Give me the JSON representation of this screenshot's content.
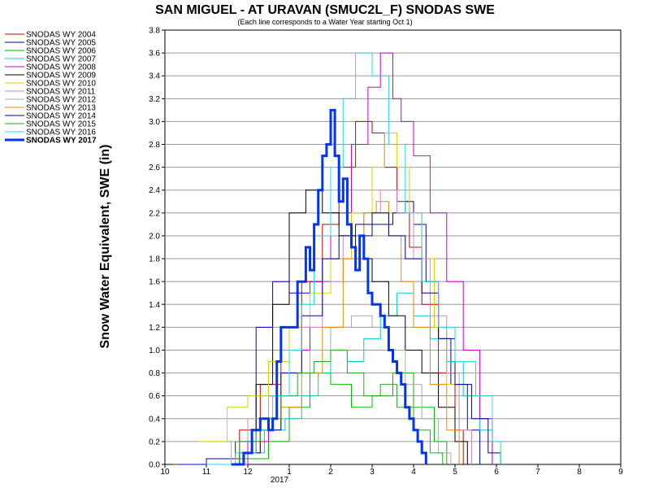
{
  "chart_data": {
    "type": "line",
    "title": "SAN MIGUEL - AT URAVAN (SMUC2L_F) SNODAS SWE",
    "subtitle": "(Each line corresponds to a Water Year starting Oct 1)",
    "xlabel": "",
    "ylabel": "Snow Water Equivalent, SWE (in)",
    "x_unit": "month (fractional, 10 = Oct 1; 2017 marks Jan)",
    "xlim": [
      10,
      21.0
    ],
    "ylim": [
      0,
      3.8
    ],
    "x_ticks": [
      {
        "v": 10,
        "label": "10"
      },
      {
        "v": 11,
        "label": "11"
      },
      {
        "v": 12,
        "label": "12"
      },
      {
        "v": 13,
        "label": "1"
      },
      {
        "v": 14,
        "label": "2"
      },
      {
        "v": 15,
        "label": "3"
      },
      {
        "v": 16,
        "label": "4"
      },
      {
        "v": 17,
        "label": "5"
      },
      {
        "v": 18,
        "label": "6"
      },
      {
        "v": 19,
        "label": "7"
      },
      {
        "v": 20,
        "label": "8"
      },
      {
        "v": 21,
        "label": "9"
      }
    ],
    "x_year_label": "2017",
    "y_ticks": [
      0.0,
      0.2,
      0.4,
      0.6,
      0.8,
      1.0,
      1.2,
      1.4,
      1.6,
      1.8,
      2.0,
      2.2,
      2.4,
      2.6,
      2.8,
      3.0,
      3.2,
      3.4,
      3.6,
      3.8
    ],
    "grid": "horizontal",
    "legend_position": "left",
    "series": [
      {
        "name": "SNODAS WY 2004",
        "color": "#cc0000",
        "width": 1,
        "x": [
          10.2,
          11.0,
          11.8,
          12.3,
          12.8,
          13.3,
          13.8,
          14.2,
          14.6,
          15.0,
          15.3,
          15.6,
          15.9,
          16.2,
          16.6,
          17.0,
          17.2
        ],
        "y": [
          0,
          0.05,
          0.3,
          0.7,
          1.2,
          1.6,
          2.1,
          2.6,
          3.0,
          2.9,
          2.6,
          2.3,
          1.9,
          1.4,
          0.8,
          0.3,
          0
        ]
      },
      {
        "name": "SNODAS WY 2005",
        "color": "#0000cc",
        "width": 1,
        "x": [
          10.3,
          11.0,
          11.7,
          12.2,
          12.6,
          13.0,
          13.5,
          14.0,
          14.5,
          15.0,
          15.5,
          15.8,
          16.0,
          16.3,
          16.6,
          16.9,
          17.3,
          17.6
        ],
        "y": [
          0,
          0.05,
          0.2,
          1.2,
          1.6,
          1.5,
          1.6,
          1.8,
          2.0,
          2.1,
          2.2,
          2.3,
          2.1,
          1.6,
          1.1,
          0.7,
          0.3,
          0
        ]
      },
      {
        "name": "SNODAS WY 2006",
        "color": "#00bb00",
        "width": 1,
        "x": [
          11.0,
          11.8,
          12.5,
          13.0,
          13.5,
          14.0,
          14.5,
          15.0,
          15.5,
          16.0,
          16.5,
          16.8
        ],
        "y": [
          0,
          0.05,
          0.2,
          0.5,
          0.8,
          0.7,
          0.5,
          0.6,
          0.8,
          0.5,
          0.2,
          0
        ]
      },
      {
        "name": "SNODAS WY 2007",
        "color": "#00cccc",
        "width": 1,
        "x": [
          11.0,
          11.8,
          12.4,
          12.9,
          13.3,
          13.7,
          14.0,
          14.4,
          14.8,
          15.2,
          15.6,
          16.0,
          16.4,
          16.8,
          17.2,
          17.6,
          17.9
        ],
        "y": [
          0,
          0.1,
          0.3,
          0.4,
          0.6,
          0.8,
          1.0,
          0.9,
          1.1,
          1.3,
          1.5,
          1.3,
          1.1,
          0.9,
          0.6,
          0.3,
          0
        ]
      },
      {
        "name": "SNODAS WY 2008",
        "color": "#cc00cc",
        "width": 1,
        "x": [
          11.2,
          12.0,
          12.5,
          13.0,
          13.5,
          14.0,
          14.5,
          14.9,
          15.2,
          15.5,
          15.7,
          16.0,
          16.4,
          16.8,
          17.2,
          17.6,
          17.9
        ],
        "y": [
          0,
          0.2,
          0.6,
          1.0,
          1.6,
          2.2,
          2.8,
          3.3,
          3.6,
          3.2,
          3.0,
          2.7,
          2.2,
          1.6,
          1.0,
          0.4,
          0
        ]
      },
      {
        "name": "SNODAS WY 2009",
        "color": "#000000",
        "width": 1,
        "x": [
          11.0,
          11.8,
          12.2,
          12.6,
          13.0,
          13.4,
          13.8,
          14.2,
          14.6,
          15.0,
          15.4,
          15.8,
          16.2,
          16.6,
          17.0,
          17.3
        ],
        "y": [
          0,
          0.1,
          0.7,
          1.4,
          2.2,
          2.4,
          2.2,
          2.0,
          1.8,
          1.6,
          1.3,
          1.0,
          0.8,
          0.5,
          0.2,
          0
        ]
      },
      {
        "name": "SNODAS WY 2010",
        "color": "#e0d000",
        "width": 1,
        "x": [
          10.8,
          11.5,
          12.0,
          12.5,
          13.0,
          13.5,
          14.0,
          14.5,
          15.0,
          15.3,
          15.6,
          15.9,
          16.2,
          16.5,
          16.8,
          17.1,
          17.4
        ],
        "y": [
          0.2,
          0.5,
          0.6,
          0.9,
          1.2,
          1.5,
          1.8,
          2.2,
          2.6,
          2.9,
          2.6,
          2.2,
          1.8,
          1.2,
          0.7,
          0.3,
          0
        ]
      },
      {
        "name": "SNODAS WY 2011",
        "color": "#cc88cc",
        "width": 1,
        "x": [
          11.0,
          11.8,
          12.3,
          12.8,
          13.3,
          13.8,
          14.3,
          14.8,
          15.2,
          15.6,
          16.0,
          16.4,
          16.8,
          17.1,
          17.4
        ],
        "y": [
          0,
          0.1,
          0.4,
          0.8,
          1.2,
          1.6,
          2.0,
          2.2,
          2.4,
          2.2,
          1.8,
          1.3,
          0.8,
          0.3,
          0
        ]
      },
      {
        "name": "SNODAS WY 2012",
        "color": "#aaaaaa",
        "width": 1,
        "x": [
          11.0,
          11.6,
          12.0,
          12.5,
          13.0,
          13.5,
          14.0,
          14.5,
          15.0,
          15.4,
          15.8,
          16.2,
          16.6,
          16.9
        ],
        "y": [
          0,
          0.2,
          0.4,
          0.6,
          0.8,
          1.0,
          1.2,
          1.3,
          1.2,
          1.0,
          0.7,
          0.4,
          0.1,
          0
        ]
      },
      {
        "name": "SNODAS WY 2013",
        "color": "#ee8800",
        "width": 1,
        "x": [
          11.0,
          11.8,
          12.3,
          12.8,
          13.3,
          13.8,
          14.3,
          14.8,
          15.1,
          15.4,
          15.7,
          16.0,
          16.4,
          16.8,
          17.1
        ],
        "y": [
          0,
          0.1,
          0.3,
          0.5,
          0.8,
          1.2,
          1.8,
          2.2,
          2.3,
          2.0,
          1.6,
          1.2,
          0.7,
          0.3,
          0
        ]
      },
      {
        "name": "SNODAS WY 2014",
        "color": "#000088",
        "width": 1,
        "x": [
          11.0,
          11.8,
          12.3,
          12.8,
          13.3,
          13.8,
          14.2,
          14.6,
          15.0,
          15.4,
          15.8,
          16.2,
          16.6,
          17.0,
          17.4,
          17.8,
          18.1
        ],
        "y": [
          0,
          0.1,
          0.3,
          0.8,
          1.3,
          1.8,
          2.0,
          2.1,
          2.2,
          2.0,
          1.8,
          1.5,
          1.1,
          0.7,
          0.4,
          0.1,
          0
        ]
      },
      {
        "name": "SNODAS WY 2015",
        "color": "#22aa22",
        "width": 1,
        "x": [
          11.0,
          11.8,
          12.3,
          12.8,
          13.2,
          13.6,
          14.0,
          14.4,
          14.8,
          15.2,
          15.6,
          16.0,
          16.4,
          16.7
        ],
        "y": [
          0,
          0.2,
          0.4,
          0.6,
          0.8,
          0.9,
          1.0,
          0.8,
          0.6,
          0.7,
          0.5,
          0.3,
          0.1,
          0
        ]
      },
      {
        "name": "SNODAS WY 2016",
        "color": "#22dddd",
        "width": 1,
        "x": [
          11.0,
          11.7,
          12.2,
          12.6,
          13.0,
          13.3,
          13.6,
          14.0,
          14.3,
          14.6,
          15.0,
          15.4,
          15.8,
          16.2,
          16.6,
          17.0,
          17.5,
          17.9,
          18.1
        ],
        "y": [
          0,
          0.1,
          0.3,
          0.6,
          1.0,
          1.4,
          2.0,
          2.6,
          3.2,
          3.6,
          3.4,
          2.8,
          2.2,
          1.6,
          1.2,
          0.9,
          0.6,
          0.2,
          0
        ]
      },
      {
        "name": "SNODAS WY 2017",
        "color": "#0033ff",
        "width": 3,
        "x": [
          11.6,
          11.9,
          12.1,
          12.3,
          12.5,
          12.6,
          12.7,
          12.8,
          13.0,
          13.2,
          13.4,
          13.5,
          13.6,
          13.7,
          13.8,
          13.9,
          14.0,
          14.1,
          14.2,
          14.3,
          14.4,
          14.5,
          14.6,
          14.7,
          14.8,
          14.9,
          15.0,
          15.1,
          15.2,
          15.3,
          15.4,
          15.5,
          15.6,
          15.7,
          15.8,
          15.9,
          16.0,
          16.1,
          16.2,
          16.3
        ],
        "y": [
          0,
          0.1,
          0.3,
          0.4,
          0.3,
          0.4,
          0.9,
          1.2,
          1.2,
          1.6,
          1.9,
          1.7,
          2.1,
          2.4,
          2.7,
          2.8,
          3.1,
          2.7,
          2.3,
          2.5,
          2.1,
          1.9,
          1.7,
          2.0,
          1.8,
          1.5,
          1.4,
          1.4,
          1.3,
          1.2,
          1.0,
          0.9,
          0.8,
          0.7,
          0.5,
          0.4,
          0.3,
          0.2,
          0.1,
          0
        ]
      }
    ]
  }
}
